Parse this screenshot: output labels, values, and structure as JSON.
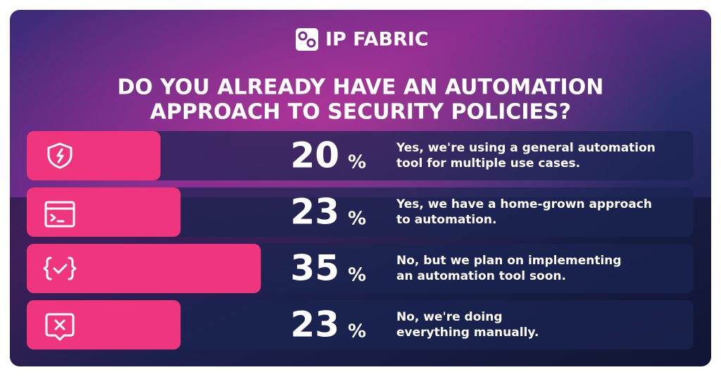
{
  "brand": "IP FABRIC",
  "chart_data": {
    "type": "bar",
    "orientation": "horizontal",
    "title": [
      "DO YOU ALREADY HAVE AN AUTOMATION",
      "APPROACH TO SECURITY POLICIES?"
    ],
    "categories": [
      [
        "Yes, we're using a general automation",
        "tool for multiple use cases."
      ],
      [
        "Yes, we have a home-grown approach",
        "to automation."
      ],
      [
        "No, but we plan on implementing",
        "an automation tool soon."
      ],
      [
        "No, we're doing",
        "everything manually."
      ]
    ],
    "values": [
      20,
      23,
      35,
      23
    ],
    "unit": "%",
    "xlim": [
      0,
      100
    ],
    "color": "#f0357f"
  }
}
